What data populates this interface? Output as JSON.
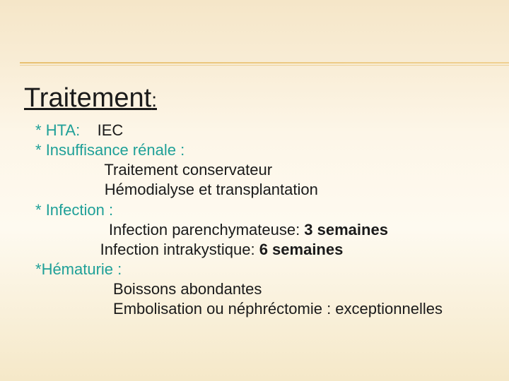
{
  "colors": {
    "keyword": "#1fa098",
    "text": "#1a1a1a",
    "bg_top": "#f5e6c8",
    "bg_mid": "#fdf6e8",
    "bg_bottom": "#f5e8c8",
    "rule": "#e8c070"
  },
  "typography": {
    "title_fontsize_pt": 29,
    "body_fontsize_pt": 17,
    "font_family": "Arial"
  },
  "title": "Traitement",
  "title_suffix": ":",
  "items": [
    {
      "label": "HTA",
      "label_suffix": ":",
      "inline": "    IEC",
      "subs": []
    },
    {
      "label": "Insuffisance rénale ",
      "label_suffix": ":",
      "inline": "",
      "subs": [
        "                Traitement conservateur",
        "                Hémodialyse et transplantation"
      ]
    },
    {
      "label": "Infection ",
      "label_suffix": ":",
      "inline": "",
      "subs_rich": [
        {
          "pre": "                 Infection parenchymateuse: ",
          "bold": "3 semaines",
          "post": ""
        },
        {
          "pre": "               Infection intrakystique: ",
          "bold": "6 semaines",
          "post": ""
        }
      ]
    },
    {
      "label": "Hématurie ",
      "label_prefix_space": false,
      "label_suffix": ":",
      "inline": "",
      "subs": [
        "                  Boissons abondantes",
        "                  Embolisation ou néphréctomie : exceptionnelles"
      ]
    }
  ]
}
